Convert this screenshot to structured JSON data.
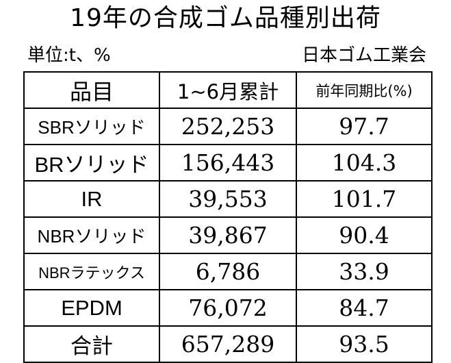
{
  "title": "19年の合成ゴム品種別出荷",
  "unit_label": "単位:t、%",
  "source": "日本ゴム工業会",
  "table": {
    "headers": [
      "品目",
      "1~6月累計",
      "前年同期比(%)"
    ],
    "rows": [
      {
        "name": "SBRソリッド",
        "total": "252,253",
        "ratio": "97.7"
      },
      {
        "name": "BRソリッド",
        "total": "156,443",
        "ratio": "104.3"
      },
      {
        "name": "IR",
        "total": "39,553",
        "ratio": "101.7"
      },
      {
        "name": "NBRソリッド",
        "total": "39,867",
        "ratio": "90.4"
      },
      {
        "name": "NBRラテックス",
        "total": "6,786",
        "ratio": "33.9"
      },
      {
        "name": "EPDM",
        "total": "76,072",
        "ratio": "84.7"
      },
      {
        "name": "合計",
        "total": "657,289",
        "ratio": "93.5"
      }
    ]
  }
}
